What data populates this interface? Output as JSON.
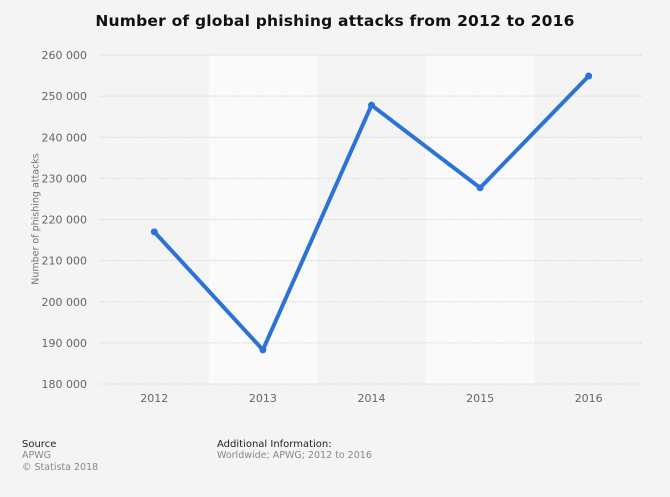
{
  "title": "Number of global phishing attacks from 2012 to 2016",
  "y_axis_label": "Number of phishing attacks",
  "colors": {
    "line": "#2b73d6",
    "background": "#f4f4f4",
    "band_light": "#fafafa",
    "grid": "#dcdcdc"
  },
  "footer": {
    "source_heading": "Source",
    "source_lines": [
      "APWG",
      "© Statista 2018"
    ],
    "additional_heading": "Additional Information:",
    "additional_text": "Worldwide; APWG; 2012 to 2016"
  },
  "chart_data": {
    "type": "line",
    "title": "Number of global phishing attacks from 2012 to 2016",
    "xlabel": "",
    "ylabel": "Number of phishing attacks",
    "categories": [
      "2012",
      "2013",
      "2014",
      "2015",
      "2016"
    ],
    "series": [
      {
        "name": "Number of phishing attacks",
        "values": [
          217000,
          188300,
          247800,
          227700,
          254900
        ]
      }
    ],
    "ylim": [
      180000,
      260000
    ],
    "yticks": [
      180000,
      190000,
      200000,
      210000,
      220000,
      230000,
      240000,
      250000,
      260000
    ],
    "ytick_labels": [
      "180 000",
      "190 000",
      "200 000",
      "210 000",
      "220 000",
      "230 000",
      "240 000",
      "250 000",
      "260 000"
    ],
    "grid": true,
    "legend": "none"
  }
}
